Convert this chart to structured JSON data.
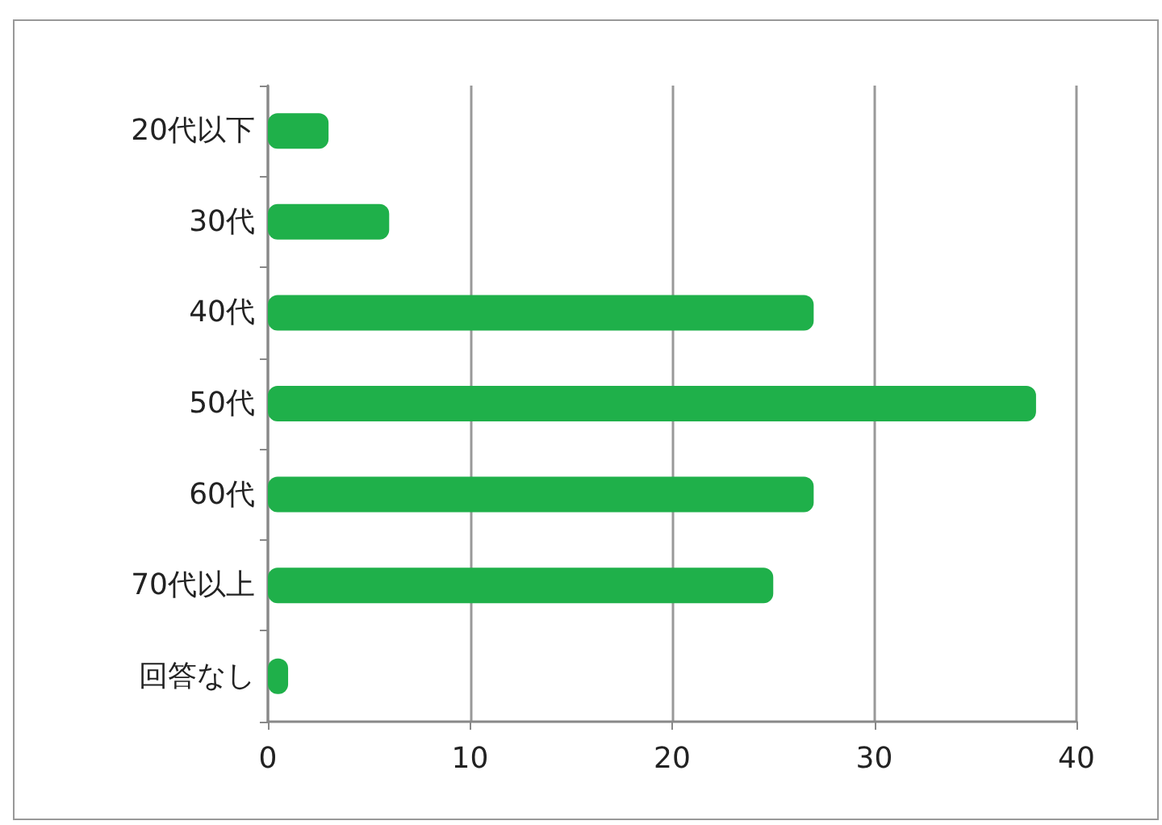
{
  "chart_data": {
    "type": "bar",
    "orientation": "horizontal",
    "categories": [
      "20代以下",
      "30代",
      "40代",
      "50代",
      "60代",
      "70代以上",
      "回答なし"
    ],
    "values": [
      3,
      6,
      27,
      38,
      27,
      25,
      1
    ],
    "color": "#1fb04a",
    "xlim": [
      0,
      40
    ],
    "xticks": [
      0,
      10,
      20,
      30,
      40
    ],
    "grid": "x"
  }
}
